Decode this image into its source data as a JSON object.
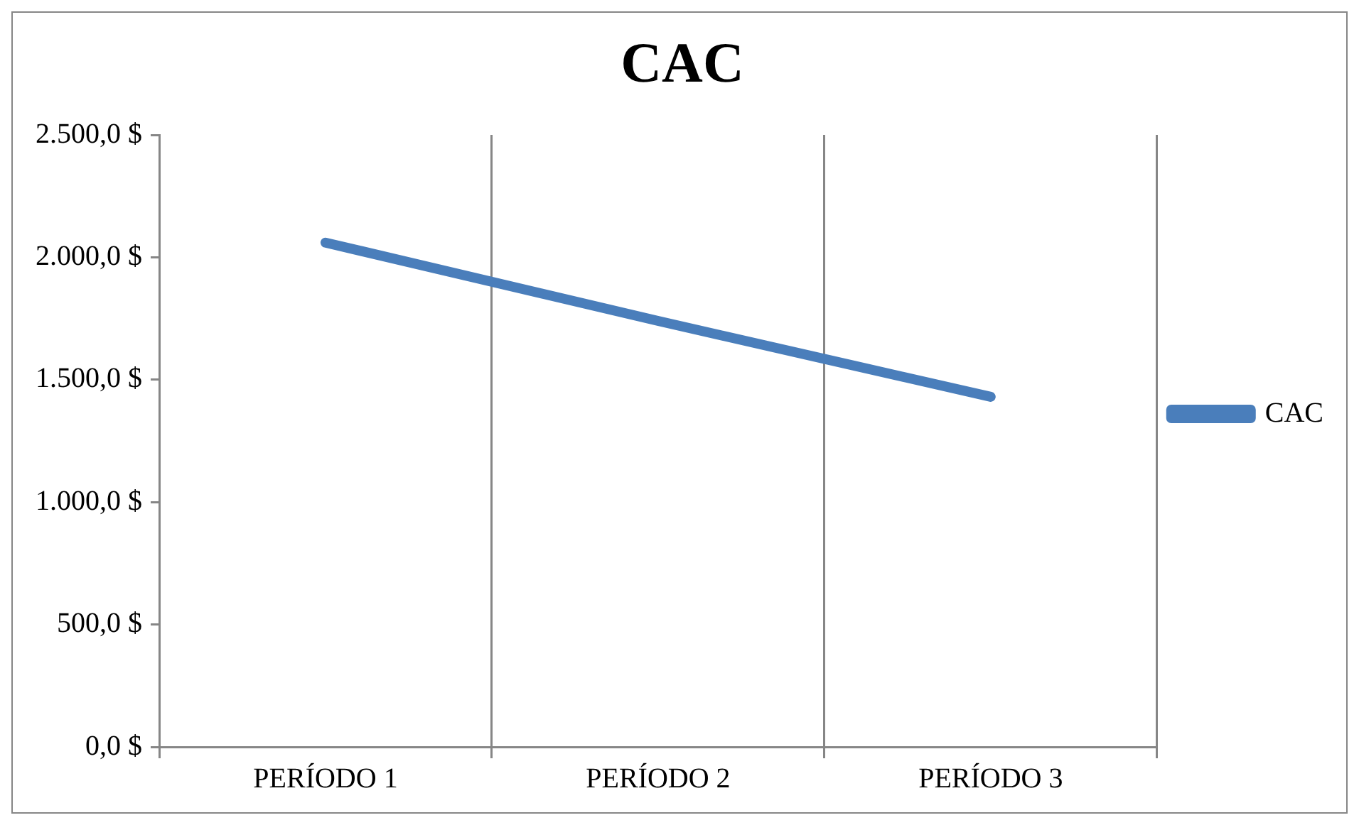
{
  "chart_data": {
    "type": "line",
    "title": "CAC",
    "categories": [
      "PERÍODO 1",
      "PERÍODO 2",
      "PERÍODO 3"
    ],
    "series": [
      {
        "name": "CAC",
        "color": "#4a7ebb",
        "values": [
          2060,
          1740,
          1430
        ]
      }
    ],
    "ylim": [
      0,
      2500
    ],
    "yticks": [
      {
        "value": 0,
        "label": "0,0 $"
      },
      {
        "value": 500,
        "label": "500,0 $"
      },
      {
        "value": 1000,
        "label": "1.000,0 $"
      },
      {
        "value": 1500,
        "label": "1.500,0 $"
      },
      {
        "value": 2000,
        "label": "2.000,0 $"
      },
      {
        "value": 2500,
        "label": "2.500,0 $"
      }
    ],
    "grid": "x",
    "legend": "right",
    "marker": "none",
    "line_style": "solid"
  }
}
